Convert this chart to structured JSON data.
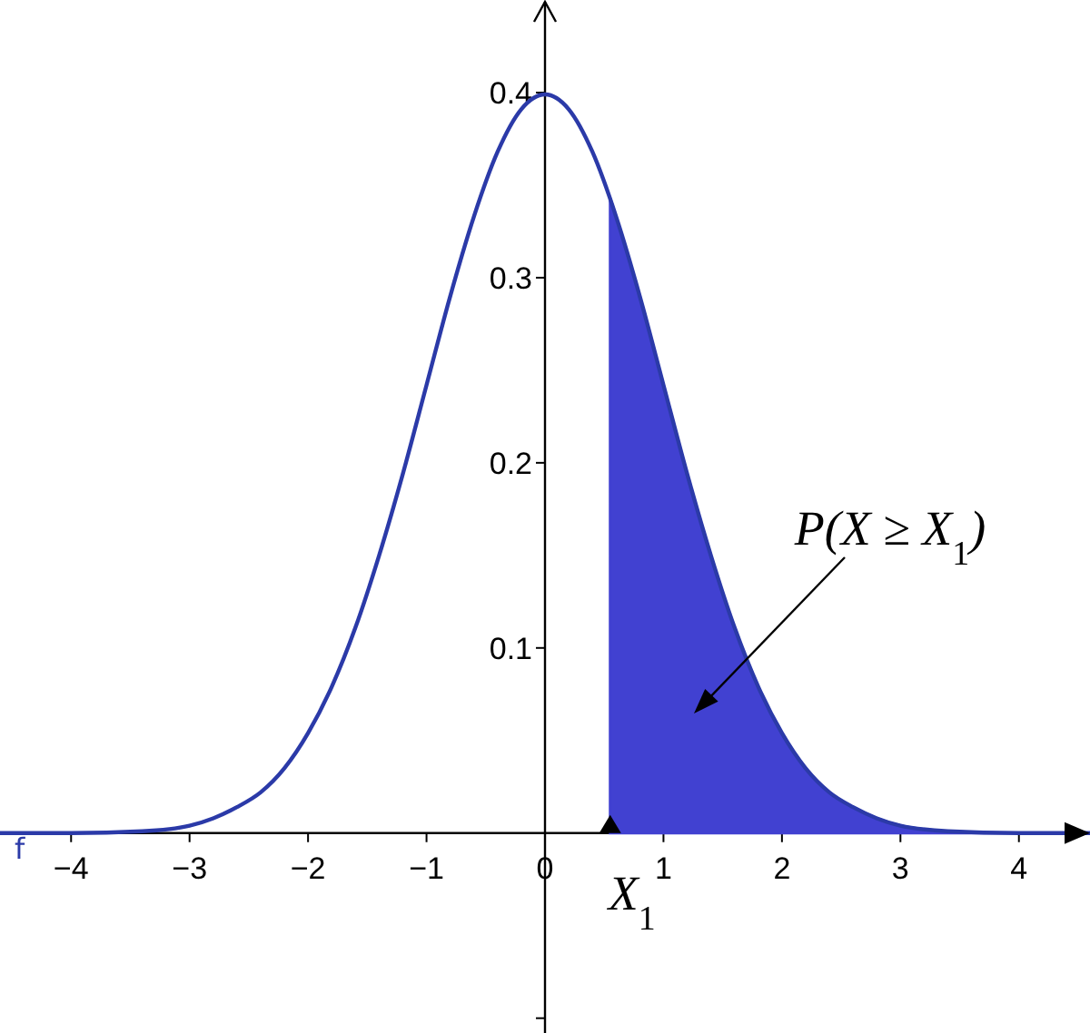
{
  "chart_data": {
    "type": "line",
    "xlim": [
      -4.6,
      4.6
    ],
    "ylim": [
      -0.108,
      0.45
    ],
    "xticks": [
      -4,
      -3,
      -2,
      -1,
      0,
      1,
      2,
      3,
      4
    ],
    "yticks": [
      {
        "value": -0.1,
        "label": null
      },
      0.1,
      0.2,
      0.3,
      0.4
    ],
    "grid": false,
    "marker": "none",
    "line_style": "solid",
    "series": [
      {
        "name": "f",
        "color": "#2b3aa8",
        "x": [
          -4.6,
          -4,
          -3.4,
          -3,
          -2.8,
          -2.6,
          -2.4,
          -2.2,
          -2,
          -1.8,
          -1.6,
          -1.4,
          -1.2,
          -1,
          -0.8,
          -0.6,
          -0.4,
          -0.2,
          0,
          0.2,
          0.4,
          0.6,
          0.8,
          1,
          1.2,
          1.4,
          1.6,
          1.8,
          2,
          2.2,
          2.4,
          2.6,
          2.8,
          3,
          3.4,
          4,
          4.6
        ],
        "values": [
          0,
          0,
          0.001,
          0.004,
          0.008,
          0.014,
          0.022,
          0.035,
          0.054,
          0.079,
          0.111,
          0.15,
          0.194,
          0.242,
          0.29,
          0.333,
          0.368,
          0.391,
          0.399,
          0.391,
          0.368,
          0.333,
          0.29,
          0.242,
          0.194,
          0.15,
          0.111,
          0.079,
          0.054,
          0.035,
          0.022,
          0.014,
          0.008,
          0.004,
          0.001,
          0,
          0
        ]
      },
      {
        "type": "area",
        "color": "#4141d1",
        "x": [
          0.55,
          0.6,
          0.8,
          1,
          1.2,
          1.4,
          1.6,
          1.8,
          2,
          2.2,
          2.4,
          2.6,
          2.8,
          3,
          3.4,
          4,
          4.6
        ],
        "values": [
          0.343,
          0.333,
          0.29,
          0.242,
          0.194,
          0.15,
          0.111,
          0.079,
          0.054,
          0.035,
          0.022,
          0.014,
          0.008,
          0.004,
          0.001,
          0,
          0
        ]
      }
    ],
    "annotations": [
      "P(X ≥ X$_{1}$)",
      {
        "text": "X$_{1}$",
        "x": 0.55,
        "y": 0
      }
    ]
  }
}
